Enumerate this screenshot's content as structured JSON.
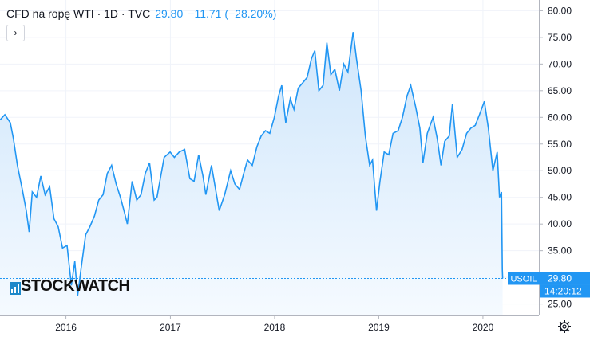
{
  "header": {
    "symbol_text": "CFD na ropę WTI · 1D · TVC",
    "price": "29.80",
    "change": "−11.71 (−28.20%)",
    "expand_glyph": "›"
  },
  "watermark": {
    "text": "STOCKWATCH",
    "icon": "chart-bars-icon"
  },
  "colors": {
    "line": "#2196f3",
    "fill_top": "#cfe6fb",
    "fill_bottom": "#f5faff",
    "label_bg": "#2196f3",
    "time_bg": "#2196f3"
  },
  "price_label": {
    "symbol": "USOIL",
    "value": "29.80",
    "time": "14:20:12"
  },
  "settings_icon": "gear-icon",
  "chart_data": {
    "type": "area",
    "title": "",
    "xlabel": "",
    "ylabel": "",
    "ylim": [
      23,
      82
    ],
    "y_ticks": [
      "80.00",
      "75.00",
      "70.00",
      "65.00",
      "60.00",
      "55.00",
      "50.00",
      "45.00",
      "40.00",
      "35.00",
      "30.00",
      "25.00"
    ],
    "x_ticks": [
      {
        "label": "2016",
        "date": "2016-01-01"
      },
      {
        "label": "2017",
        "date": "2017-01-01"
      },
      {
        "label": "2018",
        "date": "2018-01-01"
      },
      {
        "label": "2019",
        "date": "2019-01-01"
      },
      {
        "label": "2020",
        "date": "2020-01-01"
      }
    ],
    "xlim": [
      "2015-05-15",
      "2020-07-15"
    ],
    "last_value": 29.8,
    "series": [
      {
        "points": [
          [
            "2015-05-15",
            59.5
          ],
          [
            "2015-06-01",
            60.5
          ],
          [
            "2015-06-20",
            59.0
          ],
          [
            "2015-07-01",
            56.0
          ],
          [
            "2015-07-15",
            51.0
          ],
          [
            "2015-08-01",
            46.5
          ],
          [
            "2015-08-15",
            42.5
          ],
          [
            "2015-08-25",
            38.5
          ],
          [
            "2015-09-05",
            46.0
          ],
          [
            "2015-09-20",
            45.0
          ],
          [
            "2015-10-05",
            49.0
          ],
          [
            "2015-10-20",
            45.5
          ],
          [
            "2015-11-05",
            47.0
          ],
          [
            "2015-11-20",
            41.0
          ],
          [
            "2015-12-05",
            39.5
          ],
          [
            "2015-12-20",
            35.5
          ],
          [
            "2016-01-05",
            36.0
          ],
          [
            "2016-01-20",
            28.5
          ],
          [
            "2016-02-01",
            33.0
          ],
          [
            "2016-02-11",
            26.5
          ],
          [
            "2016-02-25",
            32.5
          ],
          [
            "2016-03-10",
            38.0
          ],
          [
            "2016-03-25",
            39.5
          ],
          [
            "2016-04-10",
            41.5
          ],
          [
            "2016-04-25",
            44.5
          ],
          [
            "2016-05-10",
            45.5
          ],
          [
            "2016-05-25",
            49.5
          ],
          [
            "2016-06-09",
            51.0
          ],
          [
            "2016-06-25",
            47.5
          ],
          [
            "2016-07-10",
            45.0
          ],
          [
            "2016-07-25",
            42.0
          ],
          [
            "2016-08-03",
            40.0
          ],
          [
            "2016-08-20",
            48.0
          ],
          [
            "2016-09-05",
            44.5
          ],
          [
            "2016-09-20",
            45.5
          ],
          [
            "2016-10-05",
            49.5
          ],
          [
            "2016-10-20",
            51.5
          ],
          [
            "2016-11-05",
            44.5
          ],
          [
            "2016-11-15",
            45.0
          ],
          [
            "2016-11-30",
            49.5
          ],
          [
            "2016-12-10",
            52.5
          ],
          [
            "2016-12-31",
            53.5
          ],
          [
            "2017-01-15",
            52.5
          ],
          [
            "2017-02-01",
            53.5
          ],
          [
            "2017-02-20",
            54.0
          ],
          [
            "2017-03-10",
            48.5
          ],
          [
            "2017-03-25",
            48.0
          ],
          [
            "2017-04-10",
            53.0
          ],
          [
            "2017-04-25",
            49.0
          ],
          [
            "2017-05-05",
            45.5
          ],
          [
            "2017-05-25",
            51.0
          ],
          [
            "2017-06-10",
            46.0
          ],
          [
            "2017-06-21",
            42.5
          ],
          [
            "2017-07-10",
            45.5
          ],
          [
            "2017-07-31",
            50.0
          ],
          [
            "2017-08-15",
            47.5
          ],
          [
            "2017-08-31",
            46.5
          ],
          [
            "2017-09-15",
            49.5
          ],
          [
            "2017-09-28",
            52.0
          ],
          [
            "2017-10-15",
            51.0
          ],
          [
            "2017-10-31",
            54.5
          ],
          [
            "2017-11-15",
            56.5
          ],
          [
            "2017-11-30",
            57.5
          ],
          [
            "2017-12-15",
            57.0
          ],
          [
            "2017-12-31",
            60.0
          ],
          [
            "2018-01-15",
            64.0
          ],
          [
            "2018-01-26",
            66.0
          ],
          [
            "2018-02-09",
            59.0
          ],
          [
            "2018-02-25",
            63.5
          ],
          [
            "2018-03-10",
            61.5
          ],
          [
            "2018-03-25",
            65.5
          ],
          [
            "2018-04-10",
            66.5
          ],
          [
            "2018-04-25",
            67.5
          ],
          [
            "2018-05-10",
            71.0
          ],
          [
            "2018-05-22",
            72.5
          ],
          [
            "2018-06-05",
            65.0
          ],
          [
            "2018-06-20",
            66.0
          ],
          [
            "2018-07-03",
            74.0
          ],
          [
            "2018-07-17",
            68.0
          ],
          [
            "2018-07-31",
            69.0
          ],
          [
            "2018-08-16",
            65.0
          ],
          [
            "2018-08-31",
            70.0
          ],
          [
            "2018-09-15",
            68.5
          ],
          [
            "2018-10-03",
            76.0
          ],
          [
            "2018-10-15",
            71.0
          ],
          [
            "2018-10-31",
            65.0
          ],
          [
            "2018-11-15",
            56.5
          ],
          [
            "2018-11-30",
            51.0
          ],
          [
            "2018-12-10",
            52.0
          ],
          [
            "2018-12-24",
            42.5
          ],
          [
            "2019-01-05",
            48.0
          ],
          [
            "2019-01-20",
            53.5
          ],
          [
            "2019-02-05",
            53.0
          ],
          [
            "2019-02-20",
            57.0
          ],
          [
            "2019-03-10",
            57.5
          ],
          [
            "2019-03-25",
            60.0
          ],
          [
            "2019-04-10",
            64.0
          ],
          [
            "2019-04-23",
            66.0
          ],
          [
            "2019-05-10",
            62.0
          ],
          [
            "2019-05-25",
            58.0
          ],
          [
            "2019-06-05",
            51.5
          ],
          [
            "2019-06-20",
            57.0
          ],
          [
            "2019-07-10",
            60.0
          ],
          [
            "2019-07-25",
            56.0
          ],
          [
            "2019-08-07",
            51.0
          ],
          [
            "2019-08-20",
            55.5
          ],
          [
            "2019-09-05",
            56.5
          ],
          [
            "2019-09-16",
            62.5
          ],
          [
            "2019-10-03",
            52.5
          ],
          [
            "2019-10-20",
            54.0
          ],
          [
            "2019-11-05",
            57.0
          ],
          [
            "2019-11-20",
            58.0
          ],
          [
            "2019-12-05",
            58.5
          ],
          [
            "2019-12-20",
            60.5
          ],
          [
            "2020-01-06",
            63.0
          ],
          [
            "2020-01-20",
            58.0
          ],
          [
            "2020-02-05",
            50.0
          ],
          [
            "2020-02-20",
            53.5
          ],
          [
            "2020-02-28",
            45.0
          ],
          [
            "2020-03-06",
            46.0
          ],
          [
            "2020-03-09",
            31.5
          ],
          [
            "2020-03-10",
            29.8
          ]
        ]
      }
    ]
  }
}
